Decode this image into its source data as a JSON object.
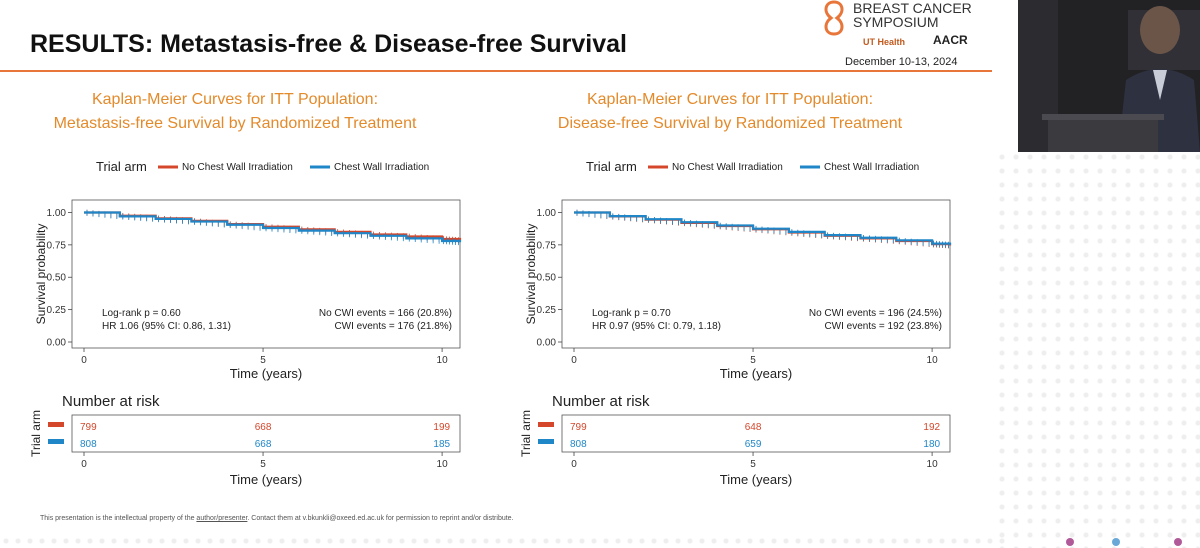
{
  "slide": {
    "title": "RESULTS: Metastasis-free & Disease-free Survival",
    "footer_pre": "This presentation is the intellectual property of the ",
    "footer_link": "author/presenter",
    "footer_post": ". Contact them at v.bkunkli@oxeed.ed.ac.uk for permission to reprint and/or distribute."
  },
  "logo": {
    "line1": "BREAST CANCER",
    "line2": "SYMPOSIUM",
    "ut": "UT Health",
    "aacr": "AACR",
    "dates": "December 10-13, 2024"
  },
  "colors": {
    "no_cwi": "#d4472b",
    "cwi": "#1f86c8",
    "accent": "#e8763a",
    "subtitle": "#e38a2b"
  },
  "chart_data": [
    {
      "type": "line",
      "title_line1": "Kaplan-Meier Curves for ITT Population:",
      "title_line2": "Metastasis-free Survival by Randomized Treatment",
      "legend_title": "Trial arm",
      "xlabel": "Time (years)",
      "ylabel": "Survival probability",
      "xlim": [
        0,
        10.5
      ],
      "ylim": [
        0,
        1.05
      ],
      "xticks": [
        "0",
        "5",
        "10"
      ],
      "yticks": [
        "0.00",
        "0.25",
        "0.50",
        "0.75",
        "1.00"
      ],
      "series": [
        {
          "name": "No Chest Wall Irradiation",
          "x": [
            0,
            1,
            2,
            3,
            4,
            5,
            6,
            7,
            8,
            9,
            10,
            10.5
          ],
          "y": [
            1.0,
            0.975,
            0.955,
            0.935,
            0.91,
            0.89,
            0.87,
            0.85,
            0.83,
            0.815,
            0.795,
            0.785
          ]
        },
        {
          "name": "Chest Wall Irradiation",
          "x": [
            0,
            1,
            2,
            3,
            4,
            5,
            6,
            7,
            8,
            9,
            10,
            10.5
          ],
          "y": [
            1.0,
            0.97,
            0.95,
            0.93,
            0.905,
            0.88,
            0.86,
            0.84,
            0.82,
            0.8,
            0.78,
            0.77
          ]
        }
      ],
      "annotations": {
        "logrank": "Log-rank p = 0.60",
        "hr": "HR 1.06 (95% CI: 0.86, 1.31)",
        "no_cwi_events": "No CWI events = 166 (20.8%)",
        "cwi_events": "CWI events = 176 (21.8%)"
      },
      "risk_table": {
        "title": "Number at risk",
        "ylabel": "Trial arm",
        "xlabel": "Time (years)",
        "rows": [
          {
            "values": [
              "799",
              "668",
              "199"
            ]
          },
          {
            "values": [
              "808",
              "668",
              "185"
            ]
          }
        ]
      }
    },
    {
      "type": "line",
      "title_line1": "Kaplan-Meier Curves for ITT Population:",
      "title_line2": "Disease-free Survival by Randomized Treatment",
      "legend_title": "Trial arm",
      "xlabel": "Time (years)",
      "ylabel": "Survival probability",
      "xlim": [
        0,
        10.5
      ],
      "ylim": [
        0,
        1.05
      ],
      "xticks": [
        "0",
        "5",
        "10"
      ],
      "yticks": [
        "0.00",
        "0.25",
        "0.50",
        "0.75",
        "1.00"
      ],
      "series": [
        {
          "name": "No Chest Wall Irradiation",
          "x": [
            0,
            1,
            2,
            3,
            4,
            5,
            6,
            7,
            8,
            9,
            10,
            10.5
          ],
          "y": [
            1.0,
            0.97,
            0.945,
            0.92,
            0.895,
            0.87,
            0.845,
            0.82,
            0.8,
            0.78,
            0.755,
            0.745
          ]
        },
        {
          "name": "Chest Wall Irradiation",
          "x": [
            0,
            1,
            2,
            3,
            4,
            5,
            6,
            7,
            8,
            9,
            10,
            10.5
          ],
          "y": [
            1.0,
            0.972,
            0.948,
            0.925,
            0.9,
            0.875,
            0.85,
            0.825,
            0.805,
            0.785,
            0.76,
            0.75
          ]
        }
      ],
      "annotations": {
        "logrank": "Log-rank p = 0.70",
        "hr": "HR 0.97 (95% CI: 0.79, 1.18)",
        "no_cwi_events": "No CWI events = 196 (24.5%)",
        "cwi_events": "CWI events = 192 (23.8%)"
      },
      "risk_table": {
        "title": "Number at risk",
        "ylabel": "Trial arm",
        "xlabel": "Time (years)",
        "rows": [
          {
            "values": [
              "799",
              "648",
              "192"
            ]
          },
          {
            "values": [
              "808",
              "659",
              "180"
            ]
          }
        ]
      }
    }
  ]
}
